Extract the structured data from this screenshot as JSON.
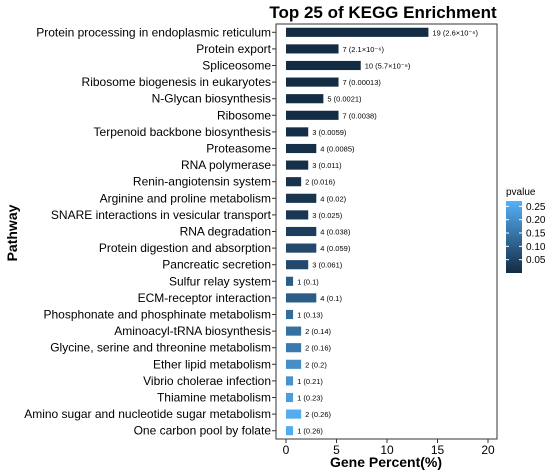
{
  "chart_data": {
    "type": "bar",
    "orientation": "horizontal",
    "title": "Top 25 of KEGG Enrichment",
    "xlabel": "Gene Percent(%)",
    "ylabel": "Pathway",
    "xlim": [
      0,
      20
    ],
    "xticks": [
      0,
      5,
      10,
      15,
      20
    ],
    "grid": false,
    "legend_position": "right",
    "color_scale": {
      "title": "pvalue",
      "ticks": [
        0.25,
        0.2,
        0.15,
        0.1,
        0.05
      ],
      "range": [
        0,
        0.27
      ],
      "low_color": "#132b43",
      "high_color": "#56b1f7"
    },
    "categories": [
      "Protein processing in endoplasmic reticulum",
      "Protein export",
      "Spliceosome",
      "Ribosome biogenesis in eukaryotes",
      "N-Glycan biosynthesis",
      "Ribosome",
      "Terpenoid backbone biosynthesis",
      "Proteasome",
      "RNA polymerase",
      "Renin-angiotensin system",
      "Arginine and proline metabolism",
      "SNARE interactions in vesicular transport",
      "RNA degradation",
      "Protein digestion and absorption",
      "Pancreatic secretion",
      "Sulfur relay system",
      "ECM-receptor interaction",
      "Phosphonate and phosphinate metabolism",
      "Aminoacyl-tRNA biosynthesis",
      "Glycine, serine and threonine metabolism",
      "Ether lipid metabolism",
      "Vibrio cholerae infection",
      "Thiamine metabolism",
      "Amino sugar and nucleotide sugar metabolism",
      "One carbon pool by folate"
    ],
    "values": [
      14.1,
      5.2,
      7.4,
      5.2,
      3.7,
      5.2,
      2.2,
      3.0,
      2.2,
      1.5,
      3.0,
      2.2,
      3.0,
      3.0,
      2.2,
      0.7,
      3.0,
      0.7,
      1.5,
      1.5,
      1.5,
      0.7,
      0.7,
      1.5,
      0.7
    ],
    "pvalues": [
      2.6e-06,
      2.1e-06,
      5.7e-06,
      0.00013,
      0.0021,
      0.0038,
      0.0059,
      0.0085,
      0.011,
      0.016,
      0.02,
      0.025,
      0.038,
      0.059,
      0.061,
      0.1,
      0.1,
      0.13,
      0.14,
      0.16,
      0.2,
      0.21,
      0.23,
      0.26,
      0.26
    ],
    "bar_labels": [
      "19 (2.6×10⁻⁶)",
      "7 (2.1×10⁻⁶)",
      "10 (5.7×10⁻⁶)",
      "7 (0.00013)",
      "5 (0.0021)",
      "7 (0.0038)",
      "3 (0.0059)",
      "4 (0.0085)",
      "3 (0.011)",
      "2 (0.016)",
      "4 (0.02)",
      "3 (0.025)",
      "4 (0.038)",
      "4 (0.059)",
      "3 (0.061)",
      "1 (0.1)",
      "4 (0.1)",
      "1 (0.13)",
      "2 (0.14)",
      "2 (0.16)",
      "2 (0.2)",
      "1 (0.21)",
      "1 (0.23)",
      "2 (0.26)",
      "1 (0.26)"
    ]
  }
}
